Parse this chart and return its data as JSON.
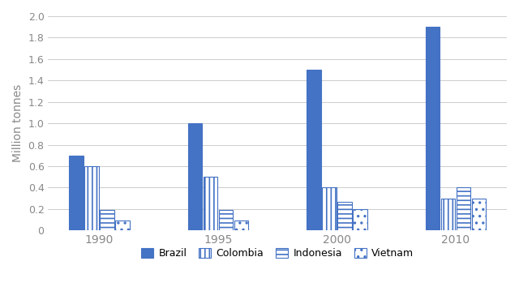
{
  "years": [
    "1990",
    "1995",
    "2000",
    "2010"
  ],
  "countries": [
    "Brazil",
    "Colombia",
    "Indonesia",
    "Vietnam"
  ],
  "values": {
    "Brazil": [
      0.7,
      1.0,
      1.5,
      1.9
    ],
    "Colombia": [
      0.6,
      0.5,
      0.4,
      0.3
    ],
    "Indonesia": [
      0.19,
      0.19,
      0.27,
      0.4
    ],
    "Vietnam": [
      0.09,
      0.09,
      0.2,
      0.3
    ]
  },
  "bar_color": "#4472C4",
  "face_colors": [
    "#4472C4",
    "#ffffff",
    "#ffffff",
    "#ffffff"
  ],
  "hatches": [
    "",
    "|||",
    "---",
    ".."
  ],
  "hatch_colors": [
    "#4472C4",
    "#4472C4",
    "#4472C4",
    "#4472C4"
  ],
  "ylabel": "Million tonnes",
  "ylim": [
    0,
    2.0
  ],
  "yticks": [
    0,
    0.2,
    0.4,
    0.6,
    0.8,
    1.0,
    1.2,
    1.4,
    1.6,
    1.8,
    2.0
  ],
  "legend_labels": [
    "Brazil",
    "Colombia",
    "Indonesia",
    "Vietnam"
  ],
  "bar_width": 0.12,
  "bar_spacing": 0.13,
  "background_color": "#ffffff",
  "grid_color": "#cccccc",
  "tick_color": "#888888",
  "label_color": "#888888"
}
